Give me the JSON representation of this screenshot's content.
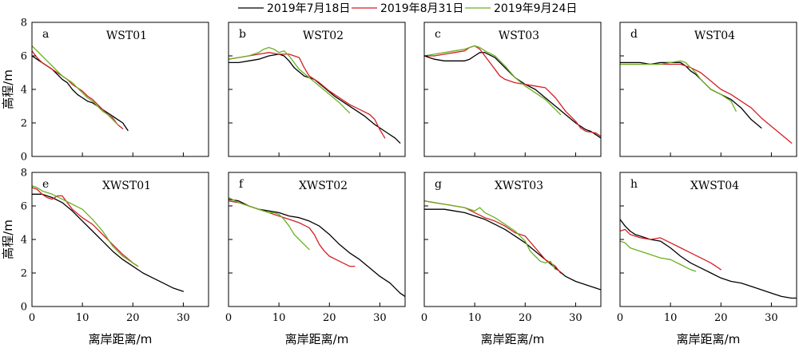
{
  "legend": [
    {
      "label": "2019年7月18日",
      "color": "#000000"
    },
    {
      "label": "2019年8月31日",
      "color": "#d61f26"
    },
    {
      "label": "2019年9月24日",
      "color": "#6ab023"
    }
  ],
  "axes": {
    "xlabel": "离岸距离/m",
    "ylabel": "高程/m",
    "xlim": [
      0,
      35
    ],
    "ylim": [
      0,
      8
    ],
    "xticks": [
      0,
      10,
      20,
      30
    ],
    "yticks": [
      0,
      2,
      4,
      6,
      8
    ]
  },
  "chart_data": [
    {
      "type": "line",
      "letter": "a",
      "title": "WST01",
      "xlim": [
        0,
        35
      ],
      "ylim": [
        0,
        8
      ],
      "series": [
        {
          "name": "2019年7月18日",
          "color": "#000000",
          "x": [
            0,
            1,
            2,
            3,
            4,
            5,
            6,
            7,
            8,
            9,
            10,
            11,
            12,
            13,
            14,
            15,
            16,
            17,
            18,
            19
          ],
          "y": [
            6.0,
            5.8,
            5.6,
            5.4,
            5.2,
            4.9,
            4.6,
            4.4,
            4.0,
            3.7,
            3.5,
            3.3,
            3.2,
            3.0,
            2.8,
            2.6,
            2.4,
            2.2,
            2.0,
            1.55
          ]
        },
        {
          "name": "2019年8月31日",
          "color": "#d61f26",
          "x": [
            0,
            1,
            2,
            3,
            4,
            5,
            6,
            7,
            8,
            9,
            10,
            11,
            12,
            13,
            14,
            15,
            16,
            17,
            18
          ],
          "y": [
            6.3,
            5.9,
            5.6,
            5.4,
            5.2,
            5.0,
            4.8,
            4.6,
            4.3,
            4.1,
            3.9,
            3.6,
            3.4,
            3.1,
            2.8,
            2.5,
            2.3,
            1.9,
            1.65
          ]
        },
        {
          "name": "2019年9月24日",
          "color": "#6ab023",
          "x": [
            0,
            1,
            2,
            3,
            4,
            5,
            6,
            7,
            8,
            9,
            10,
            11,
            12,
            13,
            14,
            15,
            16,
            17
          ],
          "y": [
            6.6,
            6.3,
            6.0,
            5.7,
            5.4,
            5.1,
            4.8,
            4.6,
            4.4,
            4.1,
            3.8,
            3.5,
            3.3,
            3.0,
            2.7,
            2.5,
            2.2,
            1.9
          ]
        }
      ]
    },
    {
      "type": "line",
      "letter": "b",
      "title": "WST02",
      "xlim": [
        0,
        35
      ],
      "ylim": [
        0,
        8
      ],
      "series": [
        {
          "name": "2019年7月18日",
          "color": "#000000",
          "x": [
            0,
            2,
            4,
            6,
            8,
            10,
            11,
            12,
            13,
            15,
            17,
            19,
            21,
            23,
            25,
            27,
            29,
            31,
            33,
            34
          ],
          "y": [
            5.6,
            5.6,
            5.7,
            5.8,
            6.0,
            6.1,
            6.0,
            5.7,
            5.3,
            4.8,
            4.6,
            4.1,
            3.6,
            3.2,
            2.8,
            2.4,
            1.9,
            1.5,
            1.1,
            0.8
          ]
        },
        {
          "name": "2019年8月31日",
          "color": "#d61f26",
          "x": [
            0,
            2,
            4,
            6,
            8,
            10,
            12,
            14,
            15,
            16,
            18,
            20,
            22,
            24,
            26,
            28,
            29,
            30,
            31
          ],
          "y": [
            5.8,
            5.9,
            6.0,
            6.1,
            6.2,
            6.1,
            6.1,
            5.9,
            5.3,
            4.8,
            4.4,
            3.9,
            3.5,
            3.1,
            2.8,
            2.5,
            2.2,
            1.6,
            1.1
          ]
        },
        {
          "name": "2019年9月24日",
          "color": "#6ab023",
          "x": [
            0,
            2,
            4,
            6,
            7,
            8,
            9,
            10,
            11,
            12,
            13,
            14,
            16,
            18,
            20,
            22,
            24
          ],
          "y": [
            5.8,
            5.9,
            6.0,
            6.2,
            6.4,
            6.5,
            6.4,
            6.2,
            6.3,
            6.0,
            5.6,
            5.2,
            4.7,
            4.2,
            3.7,
            3.2,
            2.6
          ]
        }
      ]
    },
    {
      "type": "line",
      "letter": "c",
      "title": "WST03",
      "xlim": [
        0,
        35
      ],
      "ylim": [
        0,
        8
      ],
      "series": [
        {
          "name": "2019年7月18日",
          "color": "#000000",
          "x": [
            0,
            2,
            4,
            6,
            8,
            9,
            10,
            11,
            12,
            14,
            16,
            18,
            20,
            22,
            24,
            26,
            28,
            30,
            32,
            33,
            34,
            35
          ],
          "y": [
            6.0,
            5.8,
            5.7,
            5.7,
            5.7,
            5.8,
            6.0,
            6.2,
            6.2,
            5.9,
            5.3,
            4.7,
            4.3,
            4.0,
            3.5,
            3.0,
            2.5,
            2.0,
            1.6,
            1.5,
            1.3,
            1.1
          ]
        },
        {
          "name": "2019年8月31日",
          "color": "#d61f26",
          "x": [
            0,
            2,
            4,
            6,
            8,
            9,
            10,
            11,
            12,
            13,
            14,
            15,
            16,
            18,
            20,
            22,
            24,
            26,
            28,
            30,
            31,
            32,
            34,
            35
          ],
          "y": [
            6.0,
            6.0,
            6.1,
            6.2,
            6.3,
            6.5,
            6.6,
            6.4,
            6.0,
            5.6,
            5.2,
            4.8,
            4.6,
            4.4,
            4.3,
            4.2,
            4.1,
            3.5,
            2.7,
            2.1,
            1.7,
            1.5,
            1.4,
            1.2
          ]
        },
        {
          "name": "2019年9月24日",
          "color": "#6ab023",
          "x": [
            0,
            2,
            4,
            6,
            8,
            9,
            10,
            11,
            12,
            14,
            16,
            18,
            20,
            22,
            24,
            26,
            27
          ],
          "y": [
            6.0,
            6.1,
            6.2,
            6.3,
            6.4,
            6.5,
            6.6,
            6.5,
            6.3,
            6.0,
            5.4,
            4.7,
            4.2,
            3.8,
            3.4,
            2.8,
            2.5
          ]
        }
      ]
    },
    {
      "type": "line",
      "letter": "d",
      "title": "WST04",
      "xlim": [
        0,
        35
      ],
      "ylim": [
        0,
        8
      ],
      "series": [
        {
          "name": "2019年7月18日",
          "color": "#000000",
          "x": [
            0,
            2,
            4,
            6,
            8,
            10,
            12,
            13,
            14,
            15,
            16,
            17,
            18,
            20,
            22,
            24,
            26,
            28
          ],
          "y": [
            5.6,
            5.6,
            5.6,
            5.5,
            5.6,
            5.6,
            5.6,
            5.4,
            5.1,
            4.9,
            4.6,
            4.3,
            4.0,
            3.7,
            3.4,
            2.9,
            2.2,
            1.7
          ]
        },
        {
          "name": "2019年8月31日",
          "color": "#d61f26",
          "x": [
            0,
            2,
            4,
            6,
            8,
            10,
            12,
            14,
            16,
            18,
            20,
            22,
            24,
            26,
            28,
            30,
            32,
            34
          ],
          "y": [
            5.5,
            5.5,
            5.5,
            5.5,
            5.5,
            5.5,
            5.5,
            5.3,
            5.0,
            4.5,
            4.0,
            3.7,
            3.3,
            2.9,
            2.3,
            1.8,
            1.3,
            0.8
          ]
        },
        {
          "name": "2019年9月24日",
          "color": "#6ab023",
          "x": [
            0,
            2,
            4,
            6,
            8,
            10,
            12,
            13,
            14,
            15,
            16,
            17,
            18,
            20,
            22,
            23
          ],
          "y": [
            5.5,
            5.5,
            5.5,
            5.5,
            5.5,
            5.6,
            5.7,
            5.6,
            5.3,
            5.0,
            4.6,
            4.3,
            4.0,
            3.7,
            3.3,
            2.7
          ]
        }
      ]
    },
    {
      "type": "line",
      "letter": "e",
      "title": "XWST01",
      "xlim": [
        0,
        35
      ],
      "ylim": [
        0,
        8
      ],
      "series": [
        {
          "name": "2019年7月18日",
          "color": "#000000",
          "x": [
            0,
            2,
            4,
            6,
            8,
            10,
            12,
            14,
            16,
            18,
            20,
            22,
            24,
            26,
            28,
            30
          ],
          "y": [
            6.7,
            6.7,
            6.5,
            6.2,
            5.7,
            5.1,
            4.5,
            3.9,
            3.3,
            2.8,
            2.4,
            2.0,
            1.7,
            1.4,
            1.1,
            0.9
          ]
        },
        {
          "name": "2019年8月31日",
          "color": "#d61f26",
          "x": [
            0,
            1,
            2,
            3,
            4,
            5,
            6,
            7,
            8,
            10,
            12,
            14,
            16,
            18,
            20,
            21
          ],
          "y": [
            7.1,
            7.0,
            6.7,
            6.5,
            6.4,
            6.6,
            6.6,
            6.2,
            5.8,
            5.3,
            4.9,
            4.3,
            3.7,
            3.1,
            2.6,
            2.4
          ]
        },
        {
          "name": "2019年9月24日",
          "color": "#6ab023",
          "x": [
            0,
            1,
            2,
            3,
            4,
            6,
            8,
            10,
            12,
            14,
            16,
            18,
            20,
            21
          ],
          "y": [
            7.2,
            7.1,
            6.9,
            6.8,
            6.7,
            6.4,
            6.1,
            5.8,
            5.2,
            4.5,
            3.6,
            3.0,
            2.6,
            2.4
          ]
        }
      ]
    },
    {
      "type": "line",
      "letter": "f",
      "title": "XWST02",
      "xlim": [
        0,
        35
      ],
      "ylim": [
        0,
        8
      ],
      "series": [
        {
          "name": "2019年7月18日",
          "color": "#000000",
          "x": [
            0,
            2,
            4,
            6,
            8,
            10,
            12,
            14,
            16,
            18,
            20,
            22,
            24,
            26,
            28,
            30,
            32,
            34,
            35
          ],
          "y": [
            6.4,
            6.3,
            6.0,
            5.8,
            5.7,
            5.6,
            5.4,
            5.3,
            5.1,
            4.8,
            4.3,
            3.7,
            3.2,
            2.8,
            2.3,
            1.8,
            1.4,
            0.8,
            0.6
          ]
        },
        {
          "name": "2019年8月31日",
          "color": "#d61f26",
          "x": [
            0,
            2,
            4,
            6,
            8,
            10,
            12,
            14,
            16,
            17,
            18,
            19,
            20,
            22,
            24,
            25
          ],
          "y": [
            6.3,
            6.2,
            6.0,
            5.8,
            5.6,
            5.4,
            5.2,
            5.0,
            4.7,
            4.3,
            3.7,
            3.3,
            3.0,
            2.7,
            2.4,
            2.4
          ]
        },
        {
          "name": "2019年9月24日",
          "color": "#6ab023",
          "x": [
            0,
            2,
            4,
            6,
            8,
            9,
            10,
            11,
            12,
            13,
            14,
            15,
            16
          ],
          "y": [
            6.5,
            6.2,
            6.0,
            5.8,
            5.6,
            5.6,
            5.5,
            5.2,
            4.8,
            4.3,
            4.0,
            3.7,
            3.4
          ]
        }
      ]
    },
    {
      "type": "line",
      "letter": "g",
      "title": "XWST03",
      "xlim": [
        0,
        35
      ],
      "ylim": [
        0,
        8
      ],
      "series": [
        {
          "name": "2019年7月18日",
          "color": "#000000",
          "x": [
            0,
            2,
            4,
            6,
            8,
            10,
            12,
            14,
            16,
            18,
            20,
            22,
            24,
            26,
            28,
            30,
            32,
            34,
            35
          ],
          "y": [
            5.8,
            5.8,
            5.8,
            5.7,
            5.6,
            5.4,
            5.2,
            4.9,
            4.6,
            4.2,
            3.8,
            3.3,
            2.8,
            2.3,
            1.8,
            1.5,
            1.3,
            1.1,
            1.0
          ]
        },
        {
          "name": "2019年8月31日",
          "color": "#d61f26",
          "x": [
            0,
            2,
            4,
            6,
            8,
            10,
            12,
            14,
            16,
            18,
            20,
            22,
            24,
            25,
            26,
            27
          ],
          "y": [
            6.3,
            6.2,
            6.1,
            6.0,
            5.9,
            5.6,
            5.3,
            5.1,
            4.8,
            4.4,
            4.2,
            3.5,
            2.8,
            2.6,
            2.4,
            2.0
          ]
        },
        {
          "name": "2019年9月24日",
          "color": "#6ab023",
          "x": [
            0,
            2,
            4,
            6,
            8,
            9,
            10,
            11,
            12,
            14,
            16,
            18,
            19,
            20,
            21,
            22,
            23,
            24,
            25,
            26
          ],
          "y": [
            6.3,
            6.2,
            6.1,
            6.0,
            5.9,
            5.8,
            5.7,
            5.9,
            5.6,
            5.3,
            4.9,
            4.5,
            4.2,
            3.9,
            3.3,
            3.0,
            2.7,
            2.6,
            2.7,
            2.2
          ]
        }
      ]
    },
    {
      "type": "line",
      "letter": "h",
      "title": "XWST04",
      "xlim": [
        0,
        35
      ],
      "ylim": [
        0,
        8
      ],
      "series": [
        {
          "name": "2019年7月18日",
          "color": "#000000",
          "x": [
            0,
            1,
            2,
            3,
            4,
            6,
            8,
            10,
            12,
            14,
            16,
            18,
            20,
            22,
            24,
            26,
            28,
            30,
            32,
            34,
            35
          ],
          "y": [
            5.2,
            4.8,
            4.5,
            4.3,
            4.2,
            4.0,
            3.9,
            3.5,
            3.0,
            2.6,
            2.3,
            2.0,
            1.7,
            1.5,
            1.4,
            1.2,
            1.0,
            0.8,
            0.6,
            0.5,
            0.5
          ]
        },
        {
          "name": "2019年8月31日",
          "color": "#d61f26",
          "x": [
            0,
            1,
            2,
            3,
            4,
            6,
            8,
            10,
            12,
            14,
            16,
            18,
            20
          ],
          "y": [
            4.5,
            4.6,
            4.3,
            4.2,
            4.1,
            4.0,
            4.1,
            3.8,
            3.5,
            3.2,
            2.9,
            2.6,
            2.2
          ]
        },
        {
          "name": "2019年9月24日",
          "color": "#6ab023",
          "x": [
            0,
            1,
            2,
            3,
            4,
            6,
            8,
            10,
            12,
            14,
            15
          ],
          "y": [
            3.9,
            3.8,
            3.5,
            3.4,
            3.3,
            3.1,
            2.9,
            2.8,
            2.5,
            2.2,
            2.1
          ]
        }
      ]
    }
  ]
}
